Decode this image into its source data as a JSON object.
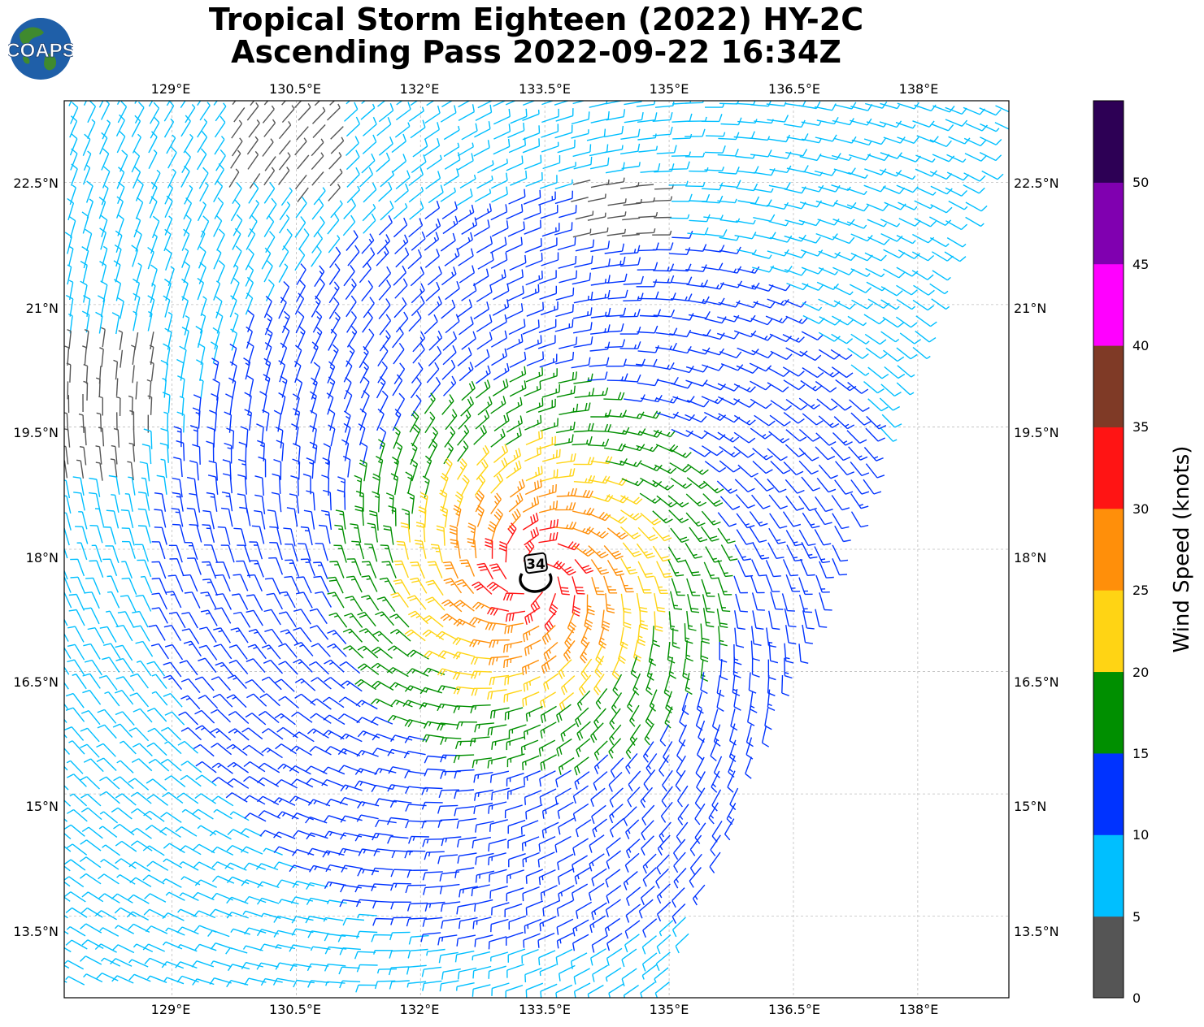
{
  "title": {
    "line1": "Tropical Storm Eighteen (2022) HY-2C",
    "line2": "Ascending Pass 2022-09-22 16:34Z"
  },
  "logo": {
    "text": "COAPS",
    "ocean_color": "#1f5fa8",
    "land_color": "#3f8a2e"
  },
  "map": {
    "lon_ticks": [
      "129°E",
      "130.5°E",
      "132°E",
      "133.5°E",
      "135°E",
      "136.5°E",
      "138°E"
    ],
    "lat_ticks": [
      "22.5°N",
      "21°N",
      "19.5°N",
      "18°N",
      "16.5°N",
      "15°N",
      "13.5°N"
    ],
    "lon_values": [
      129,
      130.5,
      132,
      133.5,
      135,
      136.5,
      138
    ],
    "lat_values": [
      22.5,
      21,
      19.5,
      18,
      16.5,
      15,
      13.5
    ],
    "lon_range": [
      127.7,
      139.1
    ],
    "lat_range": [
      12.5,
      23.5
    ],
    "gridlines": true,
    "storm_center": {
      "lon": 133.35,
      "lat": 17.7,
      "label": "34"
    },
    "wind_field": "cyclonic barbs around storm center",
    "barb_color_black": "#000000"
  },
  "colorbar": {
    "label": "Wind Speed (knots)",
    "ticks": [
      "0",
      "5",
      "10",
      "15",
      "20",
      "25",
      "30",
      "35",
      "40",
      "45",
      "50"
    ],
    "range": [
      0,
      55
    ],
    "colors": [
      "#555555",
      "#00bfff",
      "#0033ff",
      "#008f00",
      "#ffd414",
      "#ff8f0a",
      "#ff1414",
      "#7f3a26",
      "#ff00ff",
      "#8000b0",
      "#2d0055"
    ]
  }
}
